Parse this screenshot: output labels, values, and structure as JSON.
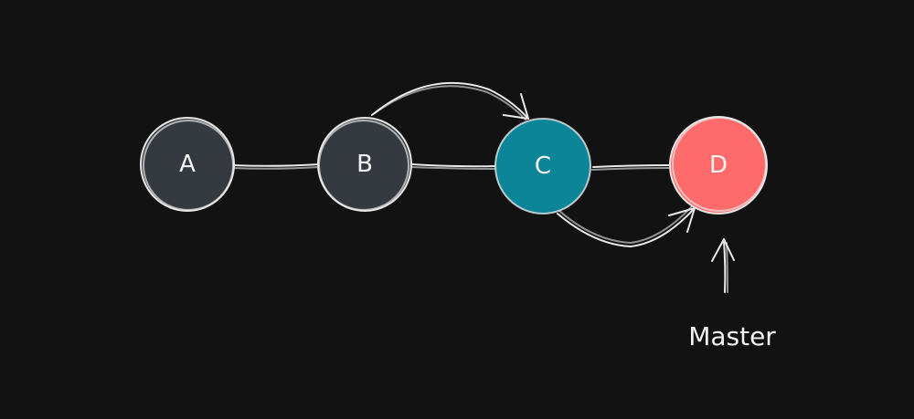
{
  "nodes": [
    {
      "id": "A",
      "label": "A",
      "color": "#343a40"
    },
    {
      "id": "B",
      "label": "B",
      "color": "#343a40"
    },
    {
      "id": "C",
      "label": "C",
      "color": "#0c8599"
    },
    {
      "id": "D",
      "label": "D",
      "color": "#ff6b6b"
    }
  ],
  "pointer": {
    "label": "Master",
    "target": "D"
  },
  "colors": {
    "background": "#121212",
    "stroke": "#e9e9e9"
  }
}
